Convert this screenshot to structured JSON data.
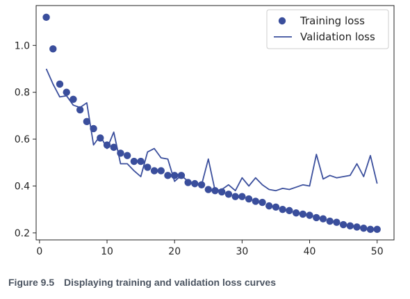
{
  "caption": {
    "figure_number": "Figure 9.5",
    "text": "Displaying training and validation loss curves"
  },
  "colors": {
    "series": "#3a4e9c",
    "axis": "#222222",
    "caption": "#4a5360"
  },
  "chart_data": {
    "type": "line",
    "title": "",
    "xlabel": "",
    "ylabel": "",
    "xlim": [
      -0.5,
      52.5
    ],
    "ylim": [
      0.17,
      1.17
    ],
    "x_ticks": [
      0,
      10,
      20,
      30,
      40,
      50
    ],
    "y_ticks": [
      0.2,
      0.4,
      0.6,
      0.8,
      1.0
    ],
    "x_tick_labels": [
      "0",
      "10",
      "20",
      "30",
      "40",
      "50"
    ],
    "y_tick_labels": [
      "0.2",
      "0.4",
      "0.6",
      "0.8",
      "1.0"
    ],
    "grid": false,
    "legend_position": "top-right",
    "x": [
      1,
      2,
      3,
      4,
      5,
      6,
      7,
      8,
      9,
      10,
      11,
      12,
      13,
      14,
      15,
      16,
      17,
      18,
      19,
      20,
      21,
      22,
      23,
      24,
      25,
      26,
      27,
      28,
      29,
      30,
      31,
      32,
      33,
      34,
      35,
      36,
      37,
      38,
      39,
      40,
      41,
      42,
      43,
      44,
      45,
      46,
      47,
      48,
      49,
      50
    ],
    "series": [
      {
        "name": "Training loss",
        "style": "markers",
        "color": "#3a4e9c",
        "values": [
          1.12,
          0.985,
          0.835,
          0.8,
          0.77,
          0.725,
          0.675,
          0.645,
          0.605,
          0.575,
          0.565,
          0.54,
          0.53,
          0.505,
          0.505,
          0.48,
          0.465,
          0.465,
          0.445,
          0.445,
          0.445,
          0.415,
          0.41,
          0.405,
          0.385,
          0.38,
          0.375,
          0.365,
          0.355,
          0.355,
          0.345,
          0.335,
          0.33,
          0.315,
          0.31,
          0.3,
          0.295,
          0.285,
          0.28,
          0.275,
          0.265,
          0.26,
          0.25,
          0.245,
          0.235,
          0.23,
          0.225,
          0.22,
          0.215,
          0.215
        ]
      },
      {
        "name": "Validation loss",
        "style": "line",
        "color": "#3a4e9c",
        "values": [
          0.9,
          0.835,
          0.78,
          0.785,
          0.745,
          0.735,
          0.755,
          0.575,
          0.615,
          0.56,
          0.63,
          0.495,
          0.495,
          0.465,
          0.44,
          0.545,
          0.56,
          0.52,
          0.515,
          0.42,
          0.445,
          0.42,
          0.41,
          0.405,
          0.515,
          0.38,
          0.385,
          0.405,
          0.38,
          0.435,
          0.4,
          0.435,
          0.405,
          0.385,
          0.38,
          0.39,
          0.385,
          0.395,
          0.405,
          0.4,
          0.535,
          0.43,
          0.445,
          0.435,
          0.44,
          0.445,
          0.495,
          0.44,
          0.53,
          0.41
        ]
      }
    ]
  }
}
